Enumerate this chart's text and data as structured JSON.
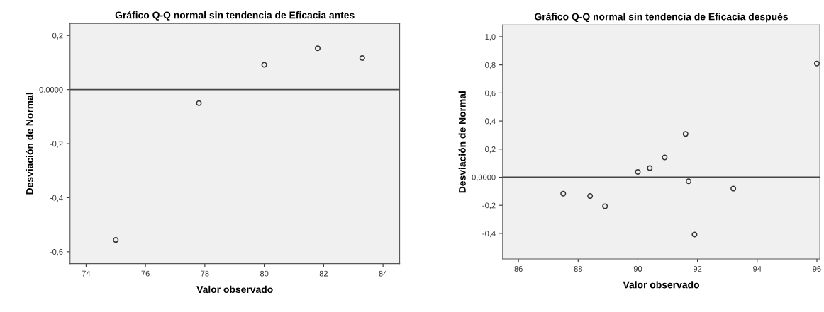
{
  "chart_data": [
    {
      "type": "scatter",
      "title": "Gráfico Q-Q normal sin tendencia de Eficacia antes",
      "xlabel": "Valor observado",
      "ylabel": "Desviación de Normal",
      "x": [
        75.0,
        77.8,
        80.0,
        81.8,
        83.3
      ],
      "values": [
        -0.556,
        -0.05,
        0.092,
        0.153,
        0.117
      ],
      "color": "#333333",
      "marker": "circle",
      "grid": false,
      "xlim": [
        73.46,
        84.56
      ],
      "xticks": [
        74,
        76,
        78,
        80,
        82,
        84
      ],
      "ylim": [
        -0.644,
        0.245
      ],
      "yticks": [
        {
          "value": -0.6,
          "label": "-0,6"
        },
        {
          "value": -0.4,
          "label": "-0,4"
        },
        {
          "value": -0.2,
          "label": "-0,2"
        },
        {
          "value": 0,
          "label": "0,0000"
        },
        {
          "value": 0.2,
          "label": "0,2"
        }
      ],
      "ref_lines": [
        {
          "axis": "y",
          "value": 0,
          "color": "#444444"
        }
      ]
    },
    {
      "type": "scatter",
      "title": "Gráfico Q-Q normal sin tendencia de Eficacia después",
      "xlabel": "Valor observado",
      "ylabel": "Desviación de Normal",
      "x": [
        87.5,
        88.4,
        88.9,
        90.0,
        90.4,
        90.9,
        91.6,
        91.7,
        91.9,
        93.2,
        96.0
      ],
      "values": [
        -0.117,
        -0.134,
        -0.207,
        0.038,
        0.065,
        0.141,
        0.308,
        -0.029,
        -0.408,
        -0.081,
        0.81
      ],
      "color": "#333333",
      "marker": "circle",
      "grid": false,
      "xlim": [
        85.47,
        96.1
      ],
      "xticks": [
        86,
        88,
        90,
        92,
        94,
        96
      ],
      "ylim": [
        -0.582,
        1.084
      ],
      "yticks": [
        {
          "value": -0.4,
          "label": "-0,4"
        },
        {
          "value": -0.2,
          "label": "-0,2"
        },
        {
          "value": 0,
          "label": "0,0000"
        },
        {
          "value": 0.2,
          "label": "0,2"
        },
        {
          "value": 0.4,
          "label": "0,4"
        },
        {
          "value": 0.6,
          "label": "0,6"
        },
        {
          "value": 0.8,
          "label": "0,8"
        },
        {
          "value": 1.0,
          "label": "1,0"
        }
      ],
      "ref_lines": [
        {
          "axis": "y",
          "value": 0,
          "color": "#444444"
        }
      ]
    }
  ]
}
